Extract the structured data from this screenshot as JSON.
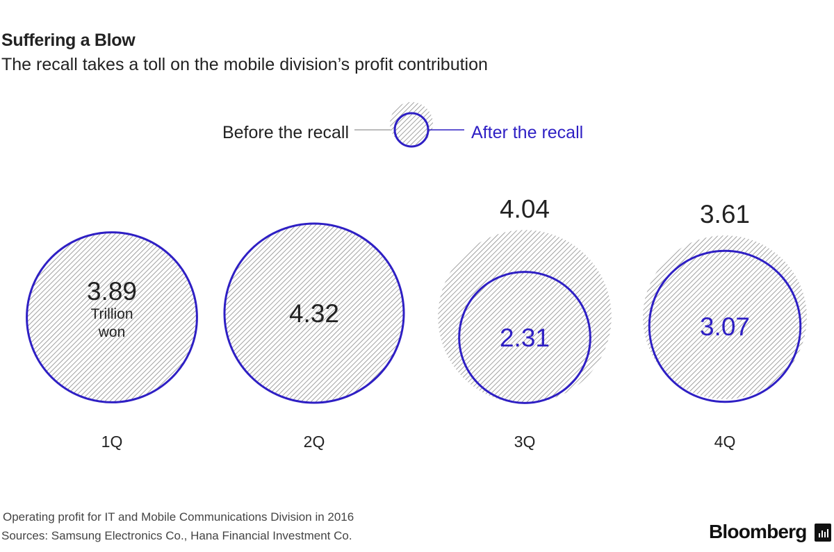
{
  "header": {
    "title": "Suffering a Blow",
    "subtitle": "The recall takes a toll on the mobile division’s profit contribution"
  },
  "legend": {
    "before_label": "Before the recall",
    "after_label": "After the recall"
  },
  "colors": {
    "after": "#2e1fc4",
    "before_hatch": "#8a8a8a",
    "text": "#222222"
  },
  "chart_data": {
    "type": "bubble",
    "title": "Suffering a Blow",
    "subtitle": "The recall takes a toll on the mobile division’s profit contribution",
    "unit": "Trillion won",
    "unit_label_lines": [
      "Trillion",
      "won"
    ],
    "categories": [
      "1Q",
      "2Q",
      "3Q",
      "4Q"
    ],
    "series": [
      {
        "name": "Before the recall",
        "values": [
          3.89,
          4.32,
          4.04,
          3.61
        ]
      },
      {
        "name": "After the recall",
        "values": [
          3.89,
          4.32,
          2.31,
          3.07
        ]
      }
    ],
    "labels": [
      "3.89",
      "4.32",
      "2.31",
      "3.07"
    ],
    "before_labels": [
      "",
      "",
      "4.04",
      "3.61"
    ]
  },
  "footer": {
    "note": "Operating profit for IT and Mobile Communications Division in 2016",
    "sources": "Sources: Samsung Electronics Co., Hana Financial Investment Co.",
    "brand": "Bloomberg"
  }
}
